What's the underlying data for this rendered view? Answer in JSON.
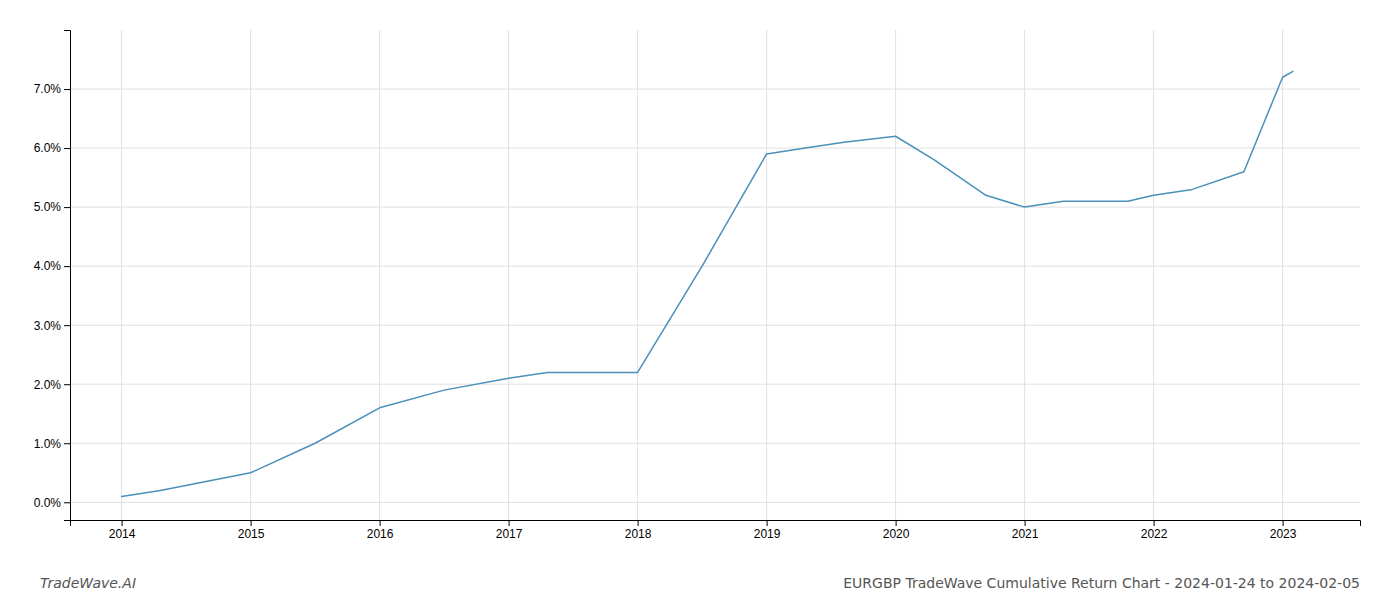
{
  "chart_data": {
    "type": "line",
    "title": "EURGBP TradeWave Cumulative Return Chart - 2024-01-24 to 2024-02-05",
    "annotations": [
      "TradeWave.AI"
    ],
    "x": [
      2014,
      2014.3,
      2015,
      2015.5,
      2016,
      2016.5,
      2017,
      2017.3,
      2017.8,
      2018,
      2018.5,
      2019,
      2019.3,
      2019.6,
      2020,
      2020.3,
      2020.7,
      2021,
      2021.3,
      2021.8,
      2022,
      2022.3,
      2022.7,
      2023,
      2023.08
    ],
    "values": [
      0.001,
      0.002,
      0.005,
      0.01,
      0.016,
      0.019,
      0.021,
      0.022,
      0.022,
      0.022,
      0.04,
      0.059,
      0.06,
      0.061,
      0.062,
      0.058,
      0.052,
      0.05,
      0.051,
      0.051,
      0.052,
      0.053,
      0.056,
      0.072,
      0.073
    ],
    "color": "#4a90b8",
    "xlim": [
      2013.6,
      2023.6
    ],
    "ylim": [
      -0.003,
      0.08
    ],
    "xticks": [
      2014,
      2015,
      2016,
      2017,
      2018,
      2019,
      2020,
      2021,
      2022,
      2023
    ],
    "yticks": [
      {
        "value": 0.0,
        "label": "0.0%"
      },
      {
        "value": 0.01,
        "label": "1.0%"
      },
      {
        "value": 0.02,
        "label": "2.0%"
      },
      {
        "value": 0.03,
        "label": "3.0%"
      },
      {
        "value": 0.04,
        "label": "4.0%"
      },
      {
        "value": 0.05,
        "label": "5.0%"
      },
      {
        "value": 0.06,
        "label": "6.0%"
      },
      {
        "value": 0.07,
        "label": "7.0%"
      }
    ],
    "grid": true
  }
}
